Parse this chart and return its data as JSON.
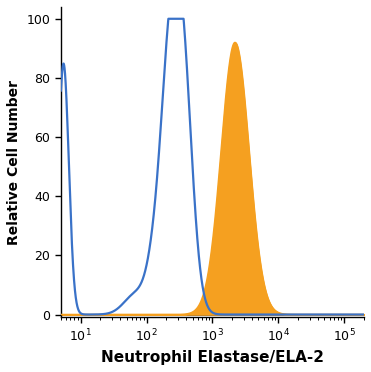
{
  "xlabel": "Neutrophil Elastase/ELA-2",
  "ylabel": "Relative Cell Number",
  "xlim": [
    5,
    200000
  ],
  "ylim": [
    -1,
    104
  ],
  "yticks": [
    0,
    20,
    40,
    60,
    80,
    100
  ],
  "blue_color": "#3a72c8",
  "orange_color": "#f5a020",
  "background_color": "#ffffff",
  "linewidth": 1.6
}
